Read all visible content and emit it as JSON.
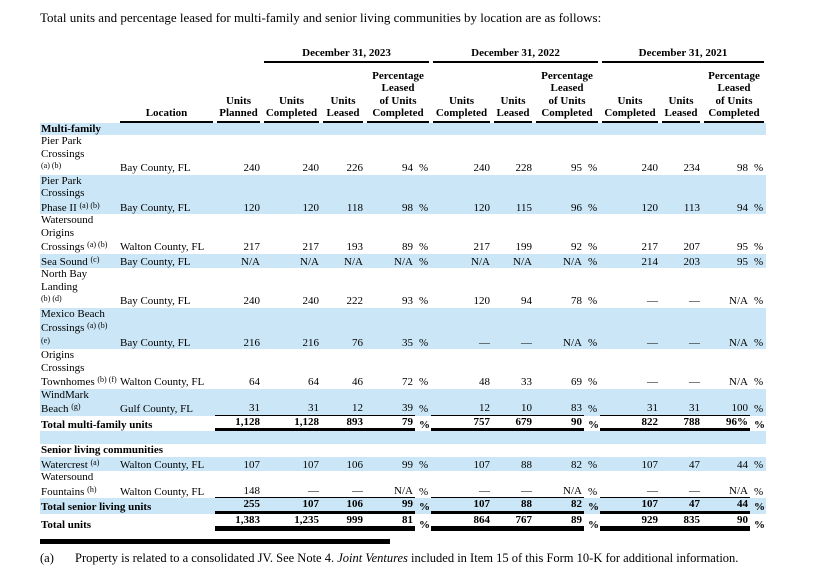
{
  "title": "Total units and percentage leased for multi-family and senior living communities by location are as follows:",
  "colors": {
    "band": "#cbe7f7",
    "rule": "#000000"
  },
  "table": {
    "header": {
      "groups": [
        "December 31, 2023",
        "December 31, 2022",
        "December 31, 2021"
      ],
      "location": "Location",
      "planned_lines": [
        "Units",
        "Planned"
      ],
      "completed_lines": [
        "Units",
        "Completed"
      ],
      "leased_lines": [
        "Units",
        "Leased"
      ],
      "pct_lines": [
        "Percentage",
        "Leased",
        "of Units",
        "Completed"
      ],
      "pct_sign": "%"
    },
    "rows": [
      {
        "type": "section",
        "shade": true,
        "label": "Multi-family"
      },
      {
        "type": "data",
        "shade": false,
        "label_lines": [
          {
            "text": "Pier Park Crossings"
          },
          {
            "sup": "(a) (b)"
          }
        ],
        "location": "Bay County, FL",
        "values": {
          "planned": "240",
          "uc23": "240",
          "ul23": "226",
          "p23": "94",
          "uc22": "240",
          "ul22": "228",
          "p22": "95",
          "uc21": "240",
          "ul21": "234",
          "p21": "98"
        }
      },
      {
        "type": "data",
        "shade": true,
        "label_lines": [
          {
            "text": "Pier Park Crossings"
          },
          {
            "text": "Phase II ",
            "sup": "(a) (b)"
          }
        ],
        "location": "Bay County, FL",
        "values": {
          "planned": "120",
          "uc23": "120",
          "ul23": "118",
          "p23": "98",
          "uc22": "120",
          "ul22": "115",
          "p22": "96",
          "uc21": "120",
          "ul21": "113",
          "p21": "94"
        }
      },
      {
        "type": "data",
        "shade": false,
        "label_lines": [
          {
            "text": "Watersound Origins"
          },
          {
            "text": "Crossings ",
            "sup": "(a) (b)"
          }
        ],
        "location": "Walton County, FL",
        "values": {
          "planned": "217",
          "uc23": "217",
          "ul23": "193",
          "p23": "89",
          "uc22": "217",
          "ul22": "199",
          "p22": "92",
          "uc21": "217",
          "ul21": "207",
          "p21": "95"
        }
      },
      {
        "type": "data",
        "shade": true,
        "label_lines": [
          {
            "text": "Sea Sound ",
            "sup": "(c)"
          }
        ],
        "location": "Bay County, FL",
        "values": {
          "planned": "N/A",
          "uc23": "N/A",
          "ul23": "N/A",
          "p23": "N/A",
          "uc22": "N/A",
          "ul22": "N/A",
          "p22": "N/A",
          "uc21": "214",
          "ul21": "203",
          "p21": "95"
        }
      },
      {
        "type": "data",
        "shade": false,
        "label_lines": [
          {
            "text": "North Bay Landing"
          },
          {
            "sup": "(b) (d)"
          }
        ],
        "location": "Bay County, FL",
        "values": {
          "planned": "240",
          "uc23": "240",
          "ul23": "222",
          "p23": "93",
          "uc22": "120",
          "ul22": "94",
          "p22": "78",
          "uc21": "—",
          "ul21": "—",
          "p21": "N/A"
        }
      },
      {
        "type": "data",
        "shade": true,
        "label_lines": [
          {
            "text": "Mexico Beach"
          },
          {
            "text": "Crossings ",
            "sup": "(a) (b) (e)"
          }
        ],
        "location": "Bay County, FL",
        "values": {
          "planned": "216",
          "uc23": "216",
          "ul23": "76",
          "p23": "35",
          "uc22": "—",
          "ul22": "—",
          "p22": "N/A",
          "uc21": "—",
          "ul21": "—",
          "p21": "N/A"
        }
      },
      {
        "type": "data",
        "shade": false,
        "label_lines": [
          {
            "text": "Origins Crossings"
          },
          {
            "text": "Townhomes ",
            "sup": "(b) (f)"
          }
        ],
        "location": "Walton County, FL",
        "values": {
          "planned": "64",
          "uc23": "64",
          "ul23": "46",
          "p23": "72",
          "uc22": "48",
          "ul22": "33",
          "p22": "69",
          "uc21": "—",
          "ul21": "—",
          "p21": "N/A"
        }
      },
      {
        "type": "data",
        "shade": true,
        "rule": "thin",
        "label_lines": [
          {
            "text": "WindMark Beach ",
            "sup": "(g)"
          }
        ],
        "location": "Gulf County, FL",
        "values": {
          "planned": "31",
          "uc23": "31",
          "ul23": "12",
          "p23": "39",
          "uc22": "12",
          "ul22": "10",
          "p22": "83",
          "uc21": "31",
          "ul21": "31",
          "p21": "100"
        }
      },
      {
        "type": "total",
        "shade": false,
        "rule": "heavy",
        "label": "Total multi-family units",
        "values": {
          "planned": "1,128",
          "uc23": "1,128",
          "ul23": "893",
          "p23": "79",
          "uc22": "757",
          "ul22": "679",
          "p22": "90",
          "uc21": "822",
          "ul21": "788",
          "p21": "96%"
        }
      },
      {
        "type": "blank",
        "shade": true
      },
      {
        "type": "section",
        "shade": false,
        "label": "Senior living communities"
      },
      {
        "type": "data",
        "shade": true,
        "label_lines": [
          {
            "text": "Watercrest ",
            "sup": "(a)"
          }
        ],
        "location": "Walton County, FL",
        "values": {
          "planned": "107",
          "uc23": "107",
          "ul23": "106",
          "p23": "99",
          "uc22": "107",
          "ul22": "88",
          "p22": "82",
          "uc21": "107",
          "ul21": "47",
          "p21": "44"
        }
      },
      {
        "type": "data",
        "shade": false,
        "rule": "thin",
        "label_lines": [
          {
            "text": "Watersound"
          },
          {
            "text": "Fountains ",
            "sup": "(h)"
          }
        ],
        "location": "Walton County, FL",
        "values": {
          "planned": "148",
          "uc23": "—",
          "ul23": "—",
          "p23": "N/A",
          "uc22": "—",
          "ul22": "—",
          "p22": "N/A",
          "uc21": "—",
          "ul21": "—",
          "p21": "N/A"
        }
      },
      {
        "type": "total",
        "shade": true,
        "rule": "heavy",
        "label": "Total senior living units",
        "values": {
          "planned": "255",
          "uc23": "107",
          "ul23": "106",
          "p23": "99",
          "uc22": "107",
          "ul22": "88",
          "p22": "82",
          "uc21": "107",
          "ul21": "47",
          "p21": "44"
        }
      },
      {
        "type": "total",
        "shade": false,
        "rule": "heavier",
        "label": "Total units",
        "values": {
          "planned": "1,383",
          "uc23": "1,235",
          "ul23": "999",
          "p23": "81",
          "uc22": "864",
          "ul22": "767",
          "p22": "89",
          "uc21": "929",
          "ul21": "835",
          "p21": "90"
        }
      }
    ]
  },
  "footnote": {
    "marker": "(a)",
    "text_pre": "Property is related to a consolidated JV. See Note 4. ",
    "text_italic": "Joint Ventures",
    "text_post": " included in Item 15 of this Form 10-K for additional information."
  }
}
